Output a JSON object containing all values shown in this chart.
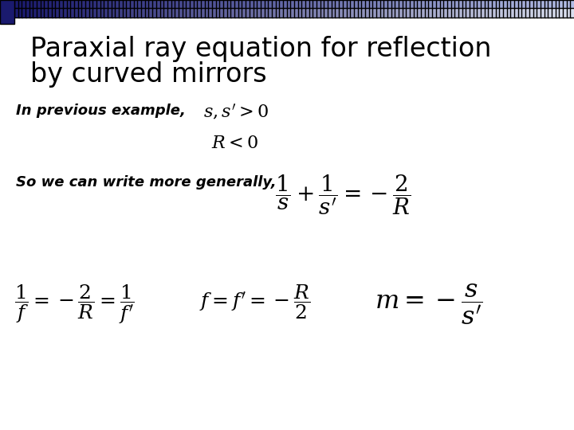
{
  "title_line1": "Paraxial ray equation for reflection",
  "title_line2": "by curved mirrors",
  "text1": "In previous example,",
  "text2": "So we can write more generally,",
  "eq1": "$s, s'>0$",
  "eq2": "$R<0$",
  "eq3": "$\\dfrac{1}{s}+\\dfrac{1}{s'}=-\\dfrac{2}{R}$",
  "eq4": "$\\dfrac{1}{f}=-\\dfrac{2}{R}=\\dfrac{1}{f'}$",
  "eq5": "$f=f'=-\\dfrac{R}{2}$",
  "eq6": "$m=-\\dfrac{s}{s'}$",
  "bg_color": "#ffffff",
  "title_color": "#000000",
  "text_color": "#000000",
  "dark_blue": "#1a1a6e",
  "mid_blue": "#3355aa",
  "title_fontsize": 24,
  "label_fontsize": 13,
  "eq_fontsize": 16
}
